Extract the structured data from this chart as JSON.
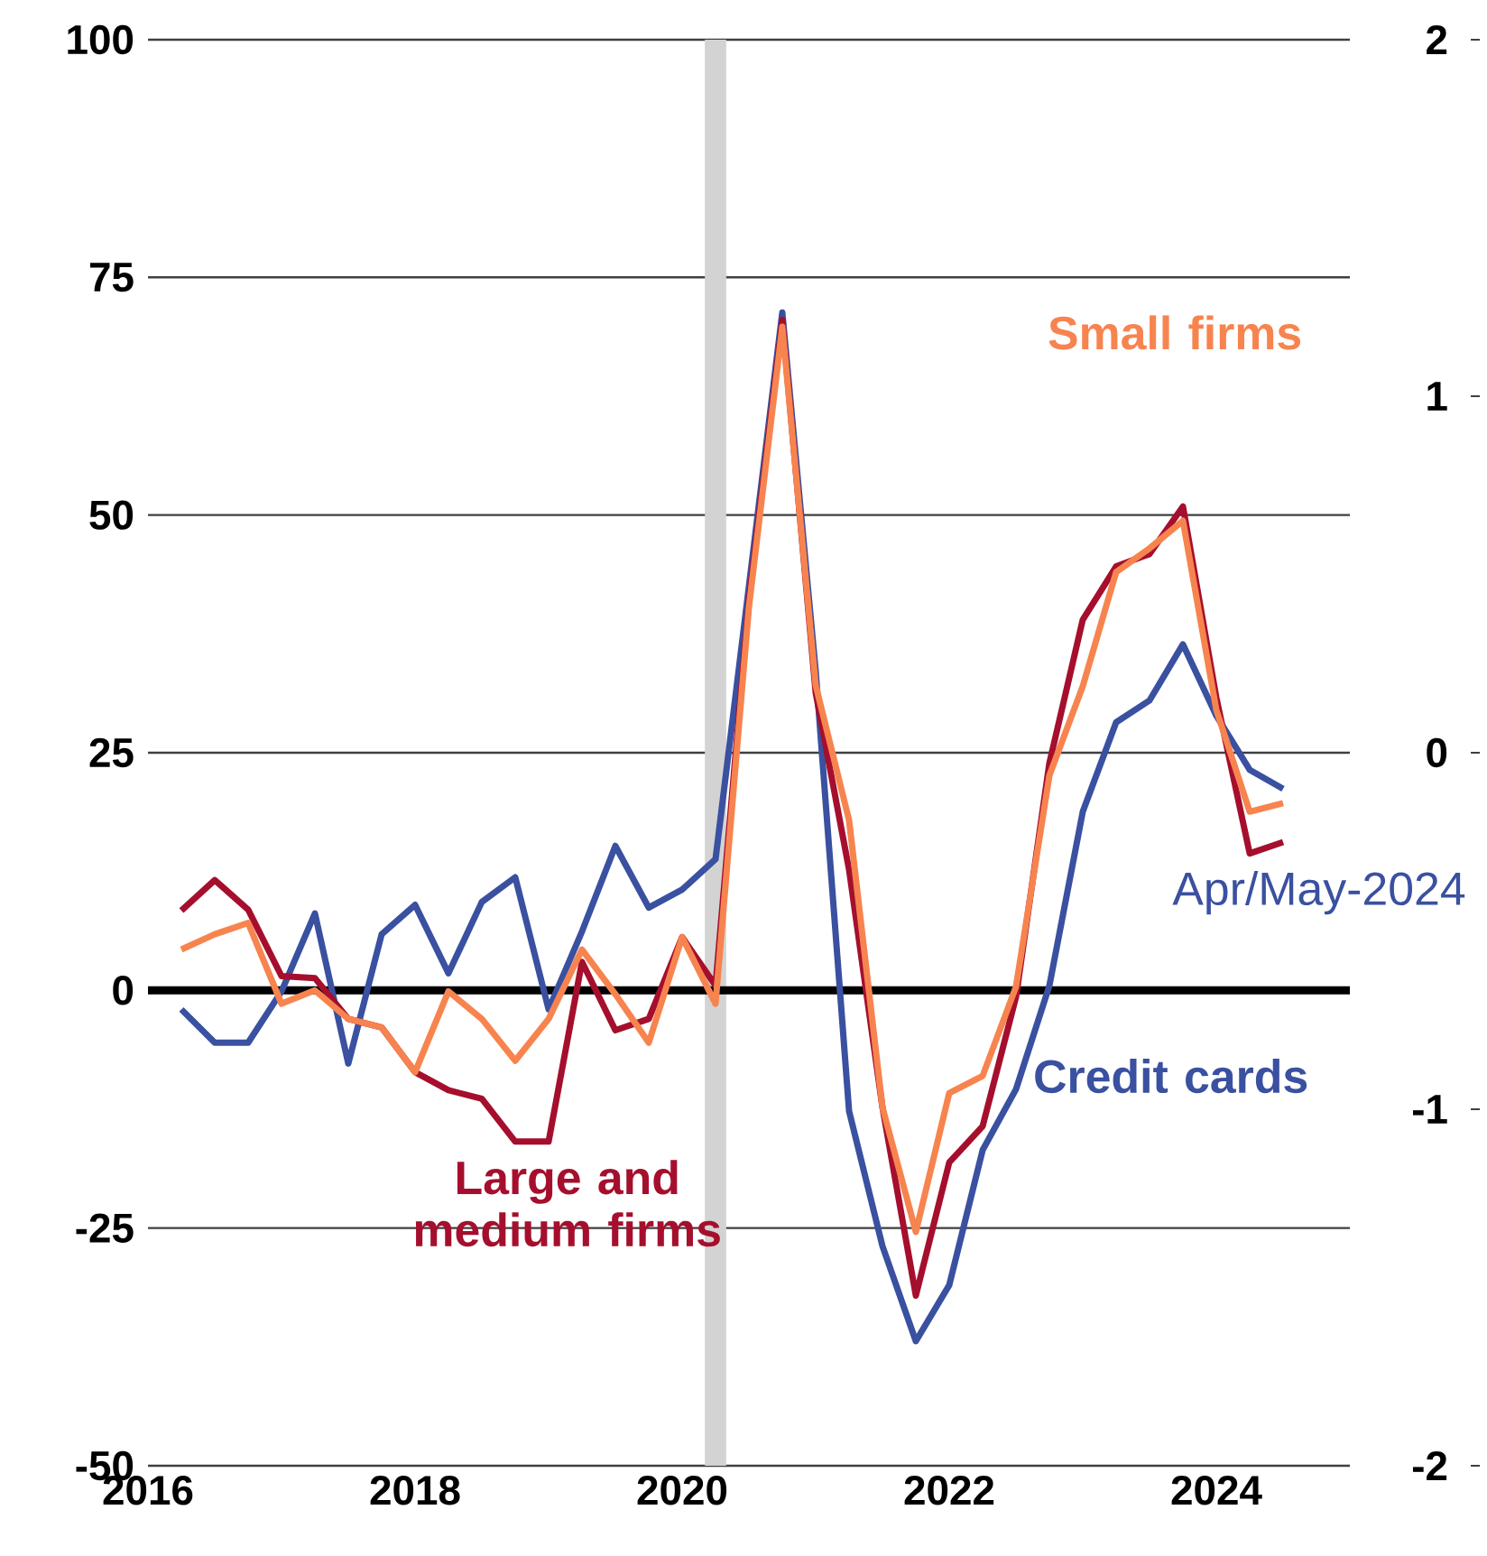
{
  "chart_data": {
    "type": "line",
    "x": [
      2016.25,
      2016.5,
      2016.75,
      2017,
      2017.25,
      2017.5,
      2017.75,
      2018,
      2018.25,
      2018.5,
      2018.75,
      2019,
      2019.25,
      2019.5,
      2019.75,
      2020,
      2020.25,
      2020.5,
      2020.75,
      2021,
      2021.25,
      2021.5,
      2021.75,
      2022,
      2022.25,
      2022.5,
      2022.75,
      2023,
      2023.25,
      2023.5,
      2023.75,
      2024,
      2024.25,
      2024.5
    ],
    "series": [
      {
        "name": "Credit cards",
        "color": "#3a50a0",
        "values": [
          -2.0,
          -5.5,
          -5.5,
          -0.1,
          8.1,
          -7.7,
          5.9,
          9.0,
          1.8,
          9.3,
          11.9,
          -2.0,
          6.2,
          15.2,
          8.7,
          10.6,
          13.8,
          42.5,
          71.3,
          33.6,
          -12.7,
          -26.9,
          -36.9,
          -31.0,
          -16.8,
          -10.4,
          0.5,
          18.8,
          28.2,
          30.5,
          36.4,
          28.9,
          23.2,
          21.2
        ]
      },
      {
        "name": "Large and medium firms",
        "color": "#a50f2d",
        "values": [
          8.4,
          11.6,
          8.5,
          1.5,
          1.3,
          -3.0,
          -3.9,
          -8.6,
          -10.5,
          -11.4,
          -15.9,
          -15.9,
          3.0,
          -4.2,
          -3.0,
          5.6,
          0.5,
          41,
          70.5,
          31.3,
          12.7,
          -12.3,
          -32.1,
          -18.1,
          -14.3,
          -0.7,
          23.9,
          39.0,
          44.6,
          45.9,
          50.9,
          30.8,
          14.4,
          15.6
        ]
      },
      {
        "name": "Small firms",
        "color": "#f7844f",
        "values": [
          4.3,
          5.9,
          7.1,
          -1.4,
          0,
          -3.0,
          -3.9,
          -8.6,
          -0.1,
          -3.0,
          -7.4,
          -3.0,
          4.3,
          -0.4,
          -5.5,
          5.6,
          -1.4,
          40.3,
          69.8,
          32.1,
          17.9,
          -12.3,
          -25.4,
          -10.8,
          -9.0,
          0.4,
          22.6,
          32.0,
          44.0,
          46.5,
          49.4,
          29.5,
          18.8,
          19.7
        ]
      }
    ],
    "xlim": [
      2016,
      2025
    ],
    "xticks": [
      2016,
      2018,
      2020,
      2022,
      2024
    ],
    "ylim": [
      -50,
      100
    ],
    "yticks": [
      -50,
      -25,
      0,
      25,
      50,
      75,
      100
    ],
    "y2lim": [
      -2,
      2
    ],
    "y2ticks": [
      -2,
      -1,
      0,
      1,
      2
    ],
    "grid": "y",
    "ref_lines": [
      {
        "axis": "y",
        "value": 0,
        "color": "#000000"
      }
    ],
    "bands": [
      {
        "axis": "x",
        "from": 2020.17,
        "to": 2020.33,
        "color": "#d3d3d3"
      }
    ],
    "annotations": [
      {
        "text": "Apr/May-2024",
        "x": 2024.5,
        "y": 21.2
      }
    ]
  }
}
